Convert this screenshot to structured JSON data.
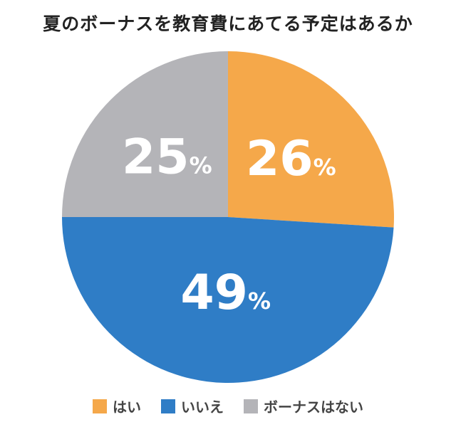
{
  "chart_data": {
    "type": "pie",
    "title": "夏のボーナスを教育費にあてる予定はあるか",
    "slices": [
      {
        "label": "はい",
        "value": 26,
        "display": "26",
        "color": "#F5A84A"
      },
      {
        "label": "いいえ",
        "value": 49,
        "display": "49",
        "color": "#2F7DC6"
      },
      {
        "label": "ボーナスはない",
        "value": 25,
        "display": "25",
        "color": "#B4B4B8"
      }
    ],
    "unit": "%",
    "start": "12 o'clock",
    "direction": "clockwise",
    "legend_position": "bottom"
  }
}
